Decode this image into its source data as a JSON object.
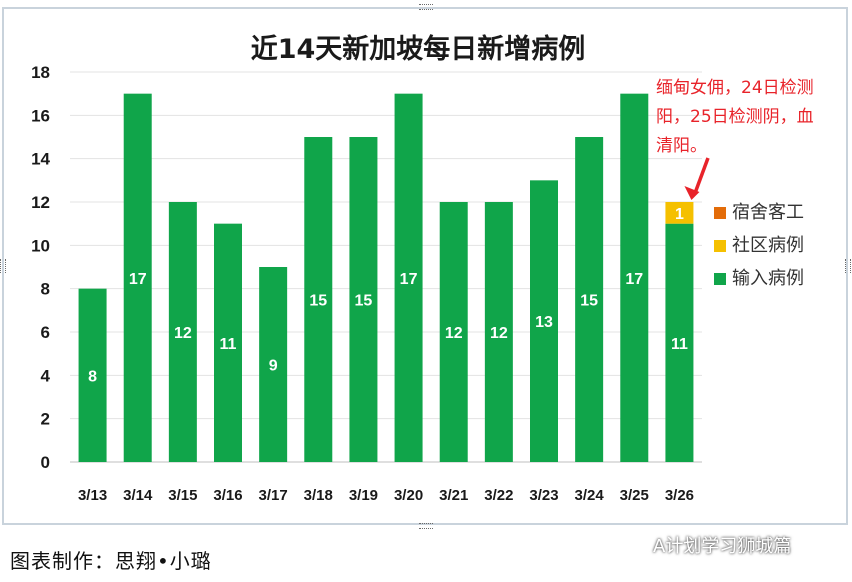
{
  "chart_data": {
    "type": "bar",
    "title": "近14天新加坡每日新增病例",
    "categories": [
      "3/13",
      "3/14",
      "3/15",
      "3/16",
      "3/17",
      "3/18",
      "3/19",
      "3/20",
      "3/21",
      "3/22",
      "3/23",
      "3/24",
      "3/25",
      "3/26"
    ],
    "series": [
      {
        "name": "输入病例",
        "color": "#10a54a",
        "values": [
          8,
          17,
          12,
          11,
          9,
          15,
          15,
          17,
          12,
          12,
          13,
          15,
          17,
          11
        ]
      },
      {
        "name": "社区病例",
        "color": "#f5c000",
        "values": [
          0,
          0,
          0,
          0,
          0,
          0,
          0,
          0,
          0,
          0,
          0,
          0,
          0,
          1
        ]
      },
      {
        "name": "宿舍客工",
        "color": "#e36c09",
        "values": [
          0,
          0,
          0,
          0,
          0,
          0,
          0,
          0,
          0,
          0,
          0,
          0,
          0,
          0
        ]
      }
    ],
    "ylim": [
      0,
      18
    ],
    "yticks": [
      "0",
      "2",
      "4",
      "6",
      "8",
      "10",
      "12",
      "14",
      "16",
      "18"
    ],
    "stacked": true,
    "grid": true,
    "legend": {
      "position": "right",
      "order": [
        "宿舍客工",
        "社区病例",
        "输入病例"
      ]
    },
    "annotation": {
      "lines": [
        "缅甸女佣，24日检测",
        "阳，25日检测阴，血",
        "清阳。"
      ],
      "color": "#e8232a"
    }
  },
  "footer": {
    "credit": "图表制作：思翔•小璐",
    "watermark": "A计划学习狮城篇"
  }
}
